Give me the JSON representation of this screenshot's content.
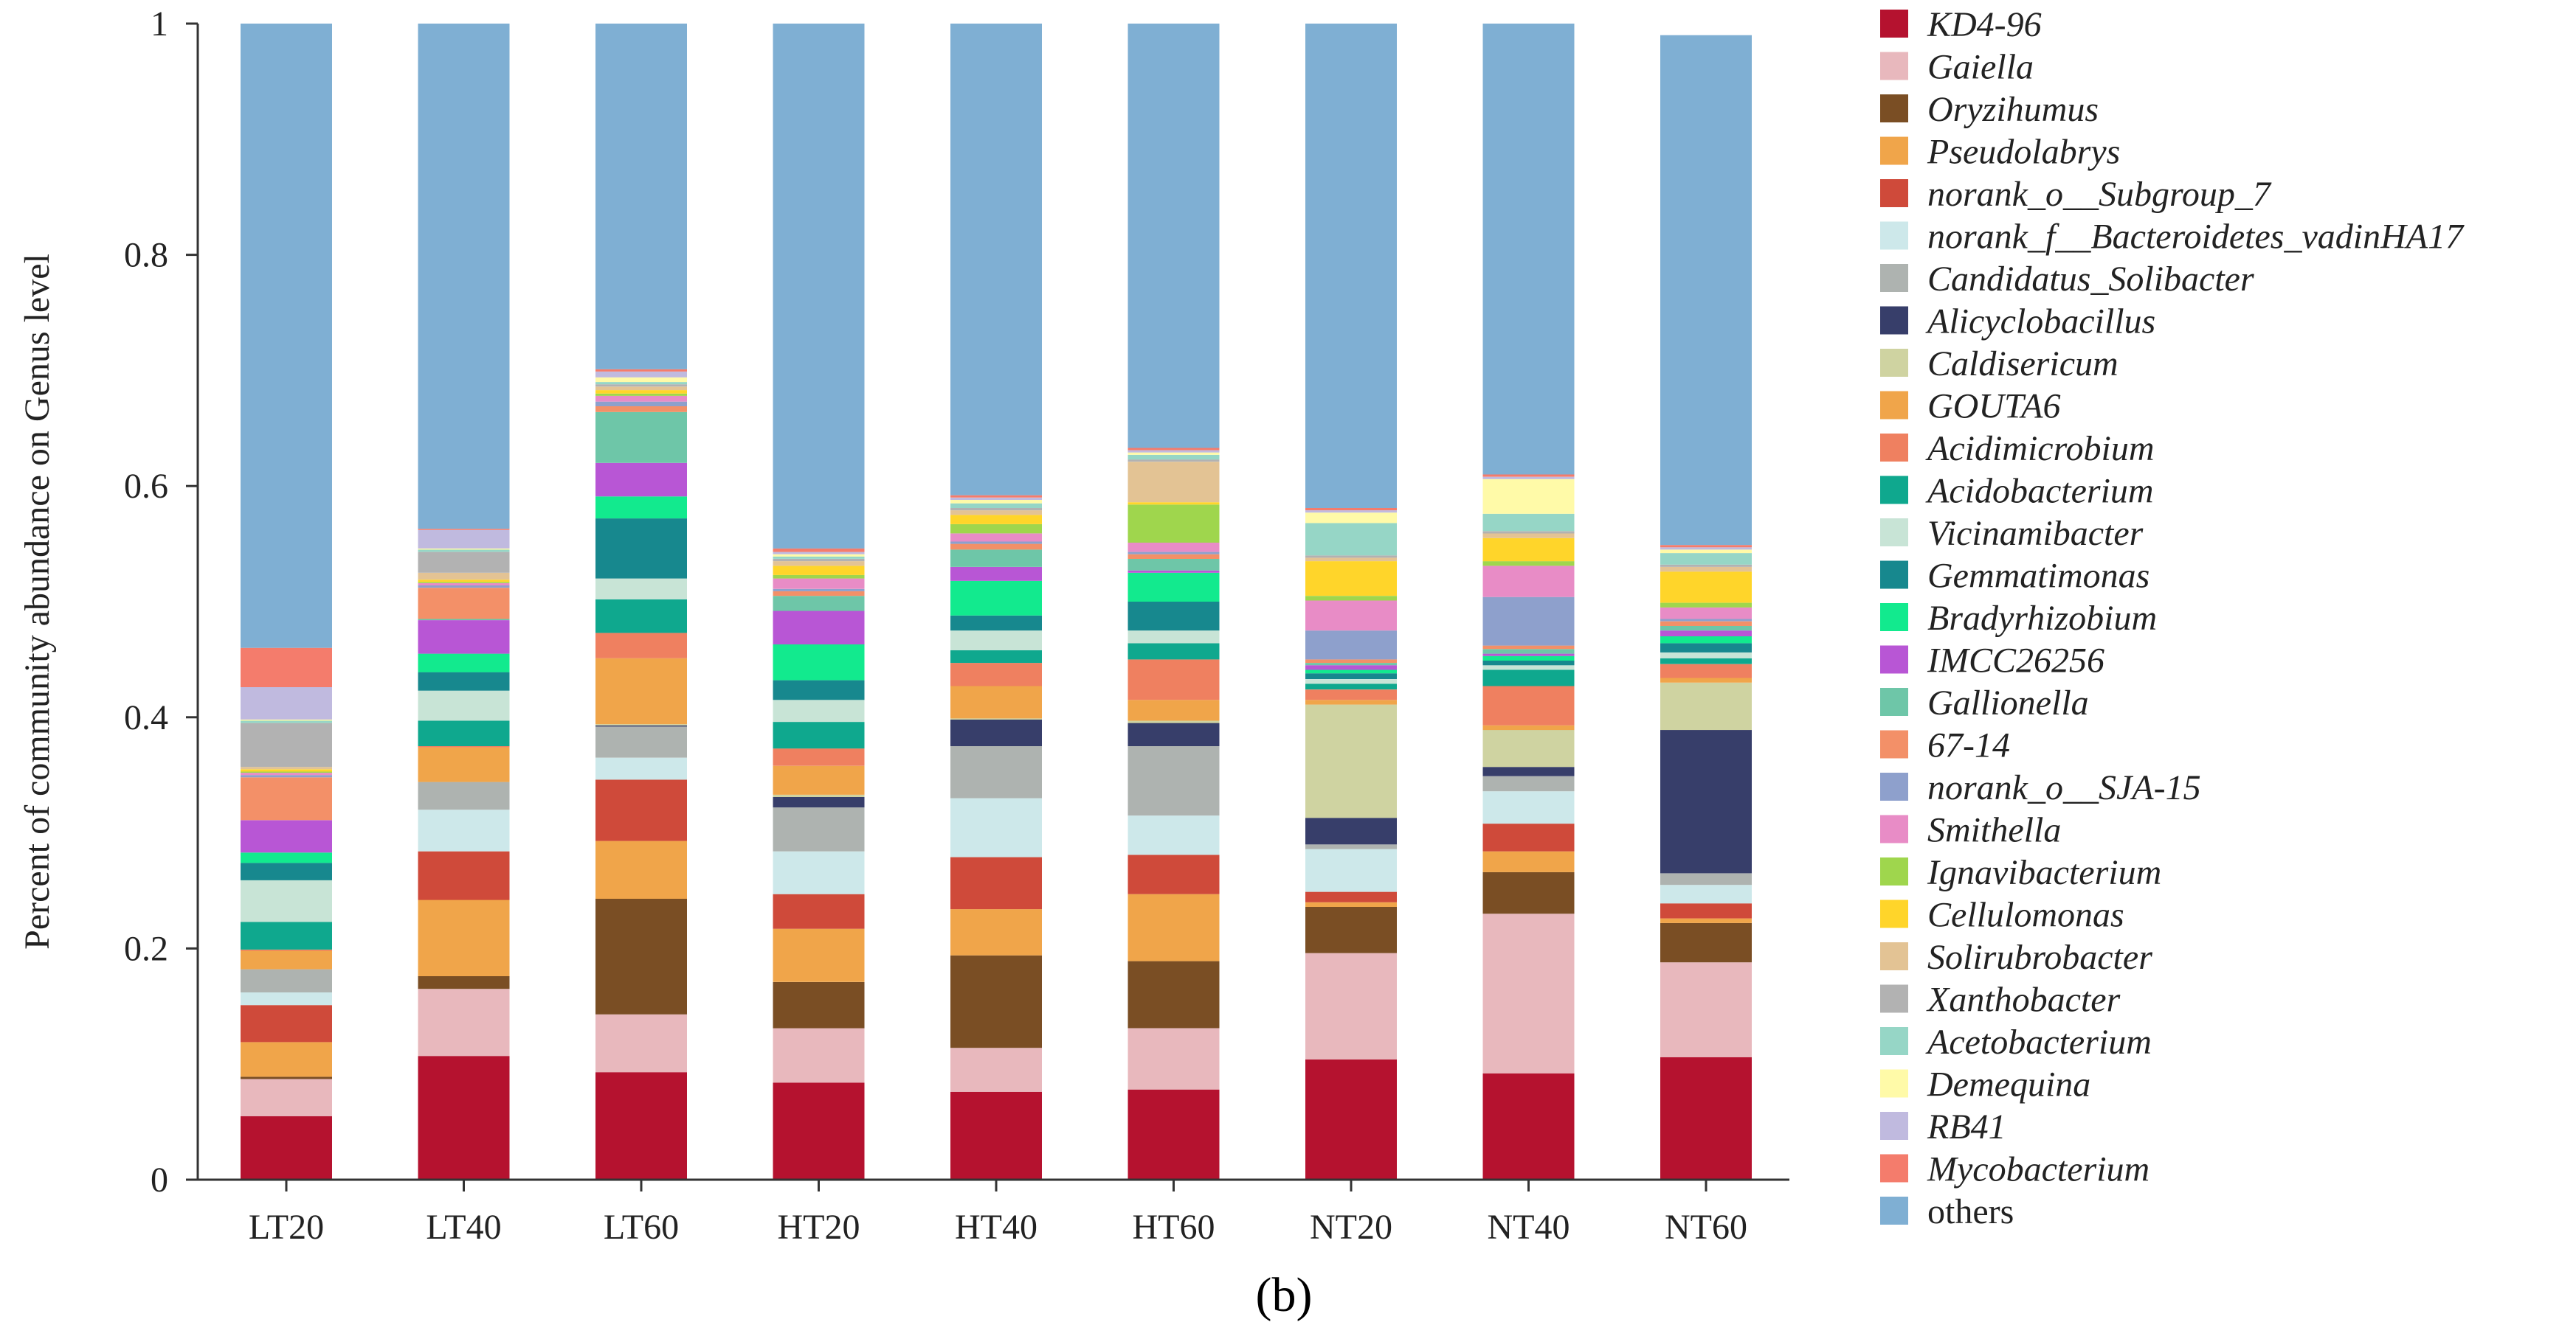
{
  "chart_data": {
    "type": "bar",
    "stacked": true,
    "title": "",
    "xlabel": "",
    "ylabel": "Percent of community abundance on Genus level",
    "caption": "(b)",
    "ylim": [
      0,
      1
    ],
    "yticks": [
      "0",
      "0.2",
      "0.4",
      "0.6",
      "0.8",
      "1"
    ],
    "categories": [
      "LT20",
      "LT40",
      "LT60",
      "HT20",
      "HT40",
      "HT60",
      "NT20",
      "NT40",
      "NT60"
    ],
    "legend_position": "right",
    "series": [
      {
        "name": "KD4-96",
        "color": "#b5122f",
        "italic": true,
        "values": [
          0.055,
          0.107,
          0.093,
          0.084,
          0.076,
          0.078,
          0.104,
          0.092,
          0.106
        ]
      },
      {
        "name": "Gaiella",
        "color": "#e8b8bd",
        "italic": true,
        "values": [
          0.032,
          0.058,
          0.05,
          0.047,
          0.038,
          0.053,
          0.092,
          0.138,
          0.082
        ]
      },
      {
        "name": "Oryzihumus",
        "color": "#7a4e24",
        "italic": true,
        "values": [
          0.002,
          0.011,
          0.1,
          0.04,
          0.08,
          0.058,
          0.04,
          0.036,
          0.034
        ]
      },
      {
        "name": "Pseudolabrys",
        "color": "#f0a54a",
        "italic": true,
        "values": [
          0.03,
          0.066,
          0.05,
          0.046,
          0.04,
          0.058,
          0.004,
          0.018,
          0.004
        ]
      },
      {
        "name": "norank_o__Subgroup_7",
        "color": "#cf4a3a",
        "italic": true,
        "values": [
          0.032,
          0.042,
          0.053,
          0.03,
          0.045,
          0.034,
          0.009,
          0.024,
          0.013
        ]
      },
      {
        "name": "norank_f__Bacteroidetes_vadinHA17",
        "color": "#cde8ea",
        "italic": true,
        "values": [
          0.011,
          0.036,
          0.019,
          0.037,
          0.051,
          0.034,
          0.037,
          0.028,
          0.016
        ]
      },
      {
        "name": "Candidatus_Solibacter",
        "color": "#aeb3b0",
        "italic": true,
        "values": [
          0.02,
          0.024,
          0.027,
          0.038,
          0.045,
          0.06,
          0.004,
          0.013,
          0.01
        ]
      },
      {
        "name": "Alicyclobacillus",
        "color": "#373e6a",
        "italic": true,
        "values": [
          0.0,
          0.0,
          0.001,
          0.009,
          0.023,
          0.02,
          0.023,
          0.008,
          0.124
        ]
      },
      {
        "name": "Caldisericum",
        "color": "#cfd3a1",
        "italic": true,
        "values": [
          0.0,
          0.0,
          0.001,
          0.002,
          0.001,
          0.002,
          0.098,
          0.032,
          0.041
        ]
      },
      {
        "name": "GOUTA6",
        "color": "#f0a54a",
        "italic": true,
        "values": [
          0.016,
          0.03,
          0.057,
          0.025,
          0.028,
          0.018,
          0.004,
          0.004,
          0.004
        ]
      },
      {
        "name": "Acidimicrobium",
        "color": "#ef8060",
        "italic": true,
        "values": [
          0.001,
          0.001,
          0.022,
          0.015,
          0.02,
          0.035,
          0.009,
          0.034,
          0.012
        ]
      },
      {
        "name": "Acidobacterium",
        "color": "#0fa88e",
        "italic": true,
        "values": [
          0.024,
          0.022,
          0.029,
          0.023,
          0.011,
          0.014,
          0.005,
          0.014,
          0.005
        ]
      },
      {
        "name": "Vicinamibacter",
        "color": "#c8e4d6",
        "italic": true,
        "values": [
          0.036,
          0.026,
          0.018,
          0.019,
          0.017,
          0.011,
          0.004,
          0.004,
          0.005
        ]
      },
      {
        "name": "Gemmatimonas",
        "color": "#17888e",
        "italic": true,
        "values": [
          0.015,
          0.016,
          0.052,
          0.017,
          0.013,
          0.025,
          0.005,
          0.004,
          0.008
        ]
      },
      {
        "name": "Bradyrhizobium",
        "color": "#12ea8e",
        "italic": true,
        "values": [
          0.009,
          0.016,
          0.019,
          0.031,
          0.03,
          0.025,
          0.003,
          0.004,
          0.006
        ]
      },
      {
        "name": "IMCC26256",
        "color": "#b856d5",
        "italic": true,
        "values": [
          0.028,
          0.029,
          0.029,
          0.029,
          0.012,
          0.002,
          0.004,
          0.002,
          0.005
        ]
      },
      {
        "name": "Gallionella",
        "color": "#6ec6a8",
        "italic": true,
        "values": [
          0.0,
          0.001,
          0.044,
          0.013,
          0.015,
          0.01,
          0.002,
          0.004,
          0.004
        ]
      },
      {
        "name": "67-14",
        "color": "#f39068",
        "italic": true,
        "values": [
          0.037,
          0.027,
          0.005,
          0.004,
          0.005,
          0.004,
          0.003,
          0.003,
          0.004
        ]
      },
      {
        "name": "norank_o__SJA-15",
        "color": "#8ea0cc",
        "italic": true,
        "values": [
          0.002,
          0.002,
          0.004,
          0.002,
          0.002,
          0.002,
          0.025,
          0.042,
          0.002
        ]
      },
      {
        "name": "Smithella",
        "color": "#e88cc6",
        "italic": true,
        "values": [
          0.002,
          0.002,
          0.005,
          0.009,
          0.007,
          0.008,
          0.026,
          0.027,
          0.01
        ]
      },
      {
        "name": "Ignavibacterium",
        "color": "#9fd64d",
        "italic": true,
        "values": [
          0.001,
          0.001,
          0.002,
          0.003,
          0.008,
          0.033,
          0.004,
          0.004,
          0.004
        ]
      },
      {
        "name": "Cellulomonas",
        "color": "#ffd52a",
        "italic": true,
        "values": [
          0.002,
          0.002,
          0.003,
          0.008,
          0.008,
          0.002,
          0.03,
          0.02,
          0.027
        ]
      },
      {
        "name": "Solirubrobacter",
        "color": "#e3c394",
        "italic": true,
        "values": [
          0.002,
          0.006,
          0.003,
          0.004,
          0.004,
          0.035,
          0.003,
          0.004,
          0.004
        ]
      },
      {
        "name": "Xanthobacter",
        "color": "#b2b2b2",
        "italic": true,
        "values": [
          0.038,
          0.018,
          0.002,
          0.002,
          0.002,
          0.002,
          0.002,
          0.002,
          0.002
        ]
      },
      {
        "name": "Acetobacterium",
        "color": "#96d6c6",
        "italic": true,
        "values": [
          0.002,
          0.002,
          0.002,
          0.002,
          0.004,
          0.004,
          0.028,
          0.015,
          0.01
        ]
      },
      {
        "name": "Demequina",
        "color": "#fffaa8",
        "italic": true,
        "values": [
          0.001,
          0.001,
          0.004,
          0.002,
          0.003,
          0.002,
          0.009,
          0.03,
          0.003
        ]
      },
      {
        "name": "RB41",
        "color": "#c0badf",
        "italic": true,
        "values": [
          0.028,
          0.016,
          0.005,
          0.002,
          0.002,
          0.002,
          0.002,
          0.002,
          0.002
        ]
      },
      {
        "name": "Mycobacterium",
        "color": "#f47c6c",
        "italic": true,
        "values": [
          0.034,
          0.001,
          0.002,
          0.003,
          0.002,
          0.002,
          0.002,
          0.002,
          0.002
        ]
      },
      {
        "name": "others",
        "color": "#7fafd3",
        "italic": false,
        "values": [
          0.551,
          0.451,
          0.309,
          0.458,
          0.42,
          0.369,
          0.428,
          0.392,
          0.441
        ]
      }
    ]
  }
}
